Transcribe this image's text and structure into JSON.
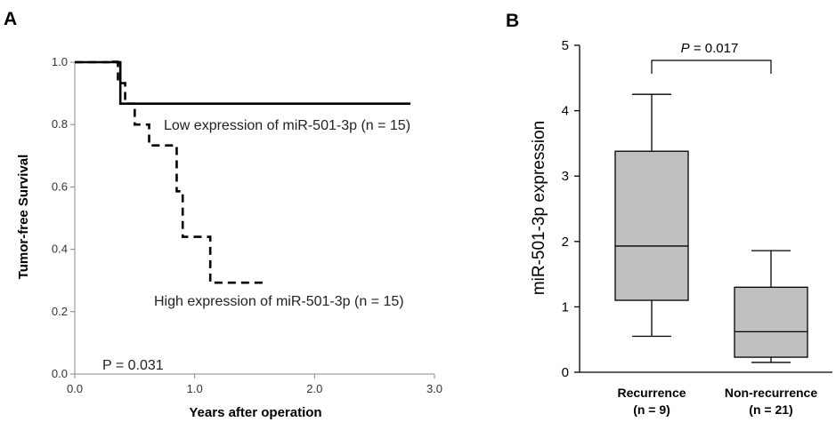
{
  "chart_data": [
    {
      "type": "line",
      "panel_label": "A",
      "xlabel": "Years after operation",
      "ylabel": "Tumor-free Survival",
      "xlim": [
        0,
        3
      ],
      "ylim": [
        0,
        1
      ],
      "xticks": [
        "0.0",
        "1.0",
        "2.0",
        "3.0"
      ],
      "yticks": [
        "0.0",
        "0.2",
        "0.4",
        "0.6",
        "0.8",
        "1.0"
      ],
      "series": [
        {
          "name": "Low expression of miR-501-3p (n = 15)",
          "style": "solid",
          "x": [
            0.0,
            0.32,
            0.38,
            0.38,
            2.8
          ],
          "y": [
            1.0,
            1.0,
            0.933,
            0.867,
            0.867
          ]
        },
        {
          "name": "High expression of miR-501-3p (n = 15)",
          "style": "dashed",
          "x": [
            0.0,
            0.36,
            0.42,
            0.5,
            0.62,
            0.85,
            0.9,
            0.93,
            1.13,
            1.58
          ],
          "y": [
            1.0,
            0.933,
            0.867,
            0.8,
            0.733,
            0.586,
            0.44,
            0.44,
            0.293,
            0.293
          ]
        }
      ],
      "annotations": [
        "P = 0.031"
      ]
    },
    {
      "type": "box",
      "panel_label": "B",
      "ylabel": "miR-501-3p expression",
      "ylim": [
        0,
        5
      ],
      "yticks": [
        "0",
        "1",
        "2",
        "3",
        "4",
        "5"
      ],
      "categories": [
        "Recurrence",
        "Non-recurrence"
      ],
      "category_n": [
        "(n = 9)",
        "(n = 21)"
      ],
      "boxes": [
        {
          "whisker_low": 0.55,
          "q1": 1.1,
          "median": 1.93,
          "q3": 3.38,
          "whisker_high": 4.25
        },
        {
          "whisker_low": 0.15,
          "q1": 0.23,
          "median": 0.62,
          "q3": 1.3,
          "whisker_high": 1.86
        }
      ],
      "box_color": "#c0c0c0",
      "significance": "P = 0.017"
    }
  ]
}
